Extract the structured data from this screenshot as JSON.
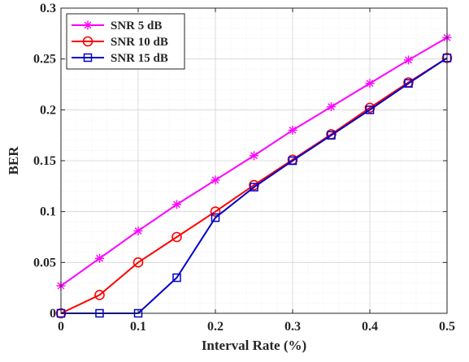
{
  "chart_data": {
    "type": "line",
    "title": "",
    "xlabel": "Interval Rate (%)",
    "ylabel": "BER",
    "xlim": [
      0,
      0.5
    ],
    "ylim": [
      0,
      0.3
    ],
    "x_ticks": [
      "0",
      "0.1",
      "0.2",
      "0.3",
      "0.4",
      "0.5"
    ],
    "y_ticks": [
      "0",
      "0.05",
      "0.1",
      "0.15",
      "0.2",
      "0.25",
      "0.3"
    ],
    "grid": true,
    "minor_grid": true,
    "legend_position": "top-left",
    "x": [
      0,
      0.05,
      0.1,
      0.15,
      0.2,
      0.25,
      0.3,
      0.35,
      0.4,
      0.45,
      0.5
    ],
    "series": [
      {
        "name": "SNR 5 dB",
        "color": "#ff00ff",
        "marker": "asterisk",
        "values": [
          0.027,
          0.054,
          0.081,
          0.107,
          0.131,
          0.155,
          0.18,
          0.203,
          0.226,
          0.249,
          0.271
        ]
      },
      {
        "name": "SNR 10 dB",
        "color": "#ff0000",
        "marker": "circle",
        "values": [
          0.0,
          0.018,
          0.05,
          0.075,
          0.1,
          0.126,
          0.151,
          0.176,
          0.202,
          0.227,
          0.251
        ]
      },
      {
        "name": "SNR 15 dB",
        "color": "#0000cc",
        "marker": "square",
        "values": [
          0.0,
          0.0,
          0.0,
          0.035,
          0.094,
          0.124,
          0.15,
          0.175,
          0.2,
          0.226,
          0.251
        ]
      }
    ]
  }
}
